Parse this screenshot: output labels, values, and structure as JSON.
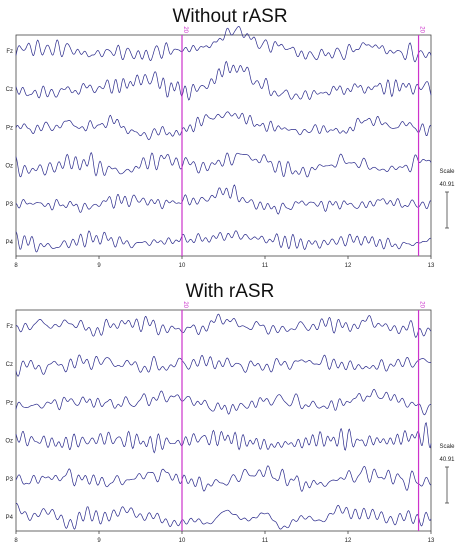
{
  "chart_data": [
    {
      "type": "line",
      "title": "Without rASR",
      "channels": [
        "Fz",
        "Cz",
        "Pz",
        "Oz",
        "P3",
        "P4"
      ],
      "x_ticks": [
        "8",
        "9",
        "10",
        "11",
        "12",
        "13"
      ],
      "xlim": [
        8,
        13
      ],
      "event_markers": [
        {
          "x": 10.0,
          "label": "20"
        },
        {
          "x": 12.85,
          "label": "20"
        }
      ],
      "scale_label": "Scale",
      "scale_value": "40.91",
      "artifact": true,
      "grid": false
    },
    {
      "type": "line",
      "title": "With rASR",
      "channels": [
        "Fz",
        "Cz",
        "Pz",
        "Oz",
        "P3",
        "P4"
      ],
      "x_ticks": [
        "8",
        "9",
        "10",
        "11",
        "12",
        "13"
      ],
      "xlim": [
        8,
        13
      ],
      "event_markers": [
        {
          "x": 10.0,
          "label": "20"
        },
        {
          "x": 12.85,
          "label": "20"
        }
      ],
      "scale_label": "Scale",
      "scale_value": "40.91",
      "artifact": false,
      "grid": false
    }
  ],
  "colors": {
    "trace": "#2b2b8c",
    "event": "#cc33cc",
    "axis": "#444444"
  }
}
